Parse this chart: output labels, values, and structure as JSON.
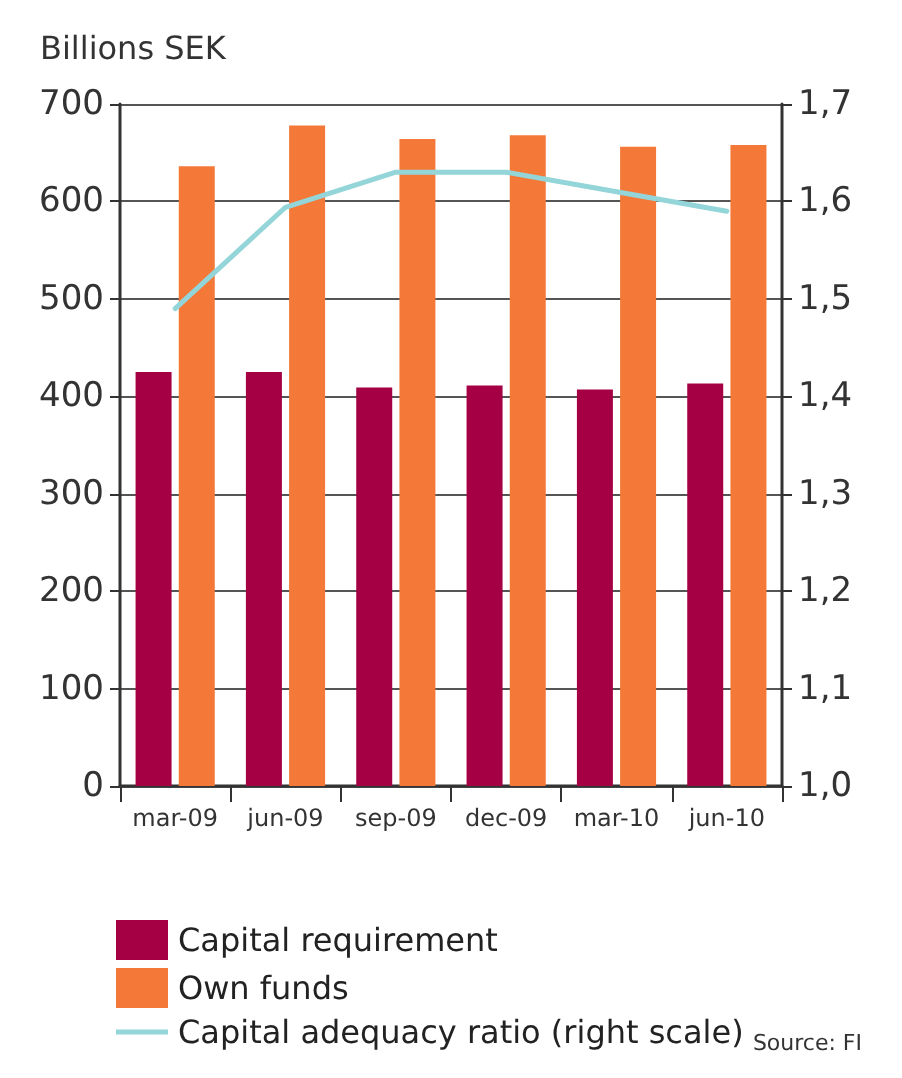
{
  "chart_data": {
    "type": "bar",
    "ylabel": "Billions SEK",
    "categories": [
      "mar-09",
      "jun-09",
      "sep-09",
      "dec-09",
      "mar-10",
      "jun-10"
    ],
    "series": [
      {
        "name": "Capital requirement",
        "color": "#a50044",
        "values": [
          425,
          425,
          409,
          411,
          407,
          413
        ]
      },
      {
        "name": "Own funds",
        "color": "#f47938",
        "values": [
          636,
          678,
          664,
          668,
          656,
          658
        ]
      },
      {
        "name": "Capital adequacy ratio (right scale)",
        "type": "line",
        "axis": "y2",
        "color": "#93d5d8",
        "marker": "none",
        "values": [
          1.49,
          1.594,
          1.63,
          1.63,
          1.61,
          1.59
        ]
      }
    ],
    "ylim": [
      0,
      700
    ],
    "yticks": [
      0,
      100,
      200,
      300,
      400,
      500,
      600,
      700
    ],
    "y2lim": [
      1.0,
      1.7
    ],
    "y2ticks": [
      {
        "value": 1.0,
        "label": "1,0"
      },
      {
        "value": 1.1,
        "label": "1,1"
      },
      {
        "value": 1.2,
        "label": "1,2"
      },
      {
        "value": 1.3,
        "label": "1,3"
      },
      {
        "value": 1.4,
        "label": "1,4"
      },
      {
        "value": 1.5,
        "label": "1,5"
      },
      {
        "value": 1.6,
        "label": "1,6"
      },
      {
        "value": 1.7,
        "label": "1,7"
      }
    ],
    "grid": "y",
    "legend": "bottom left",
    "annotations": [
      "Source: FI"
    ]
  }
}
